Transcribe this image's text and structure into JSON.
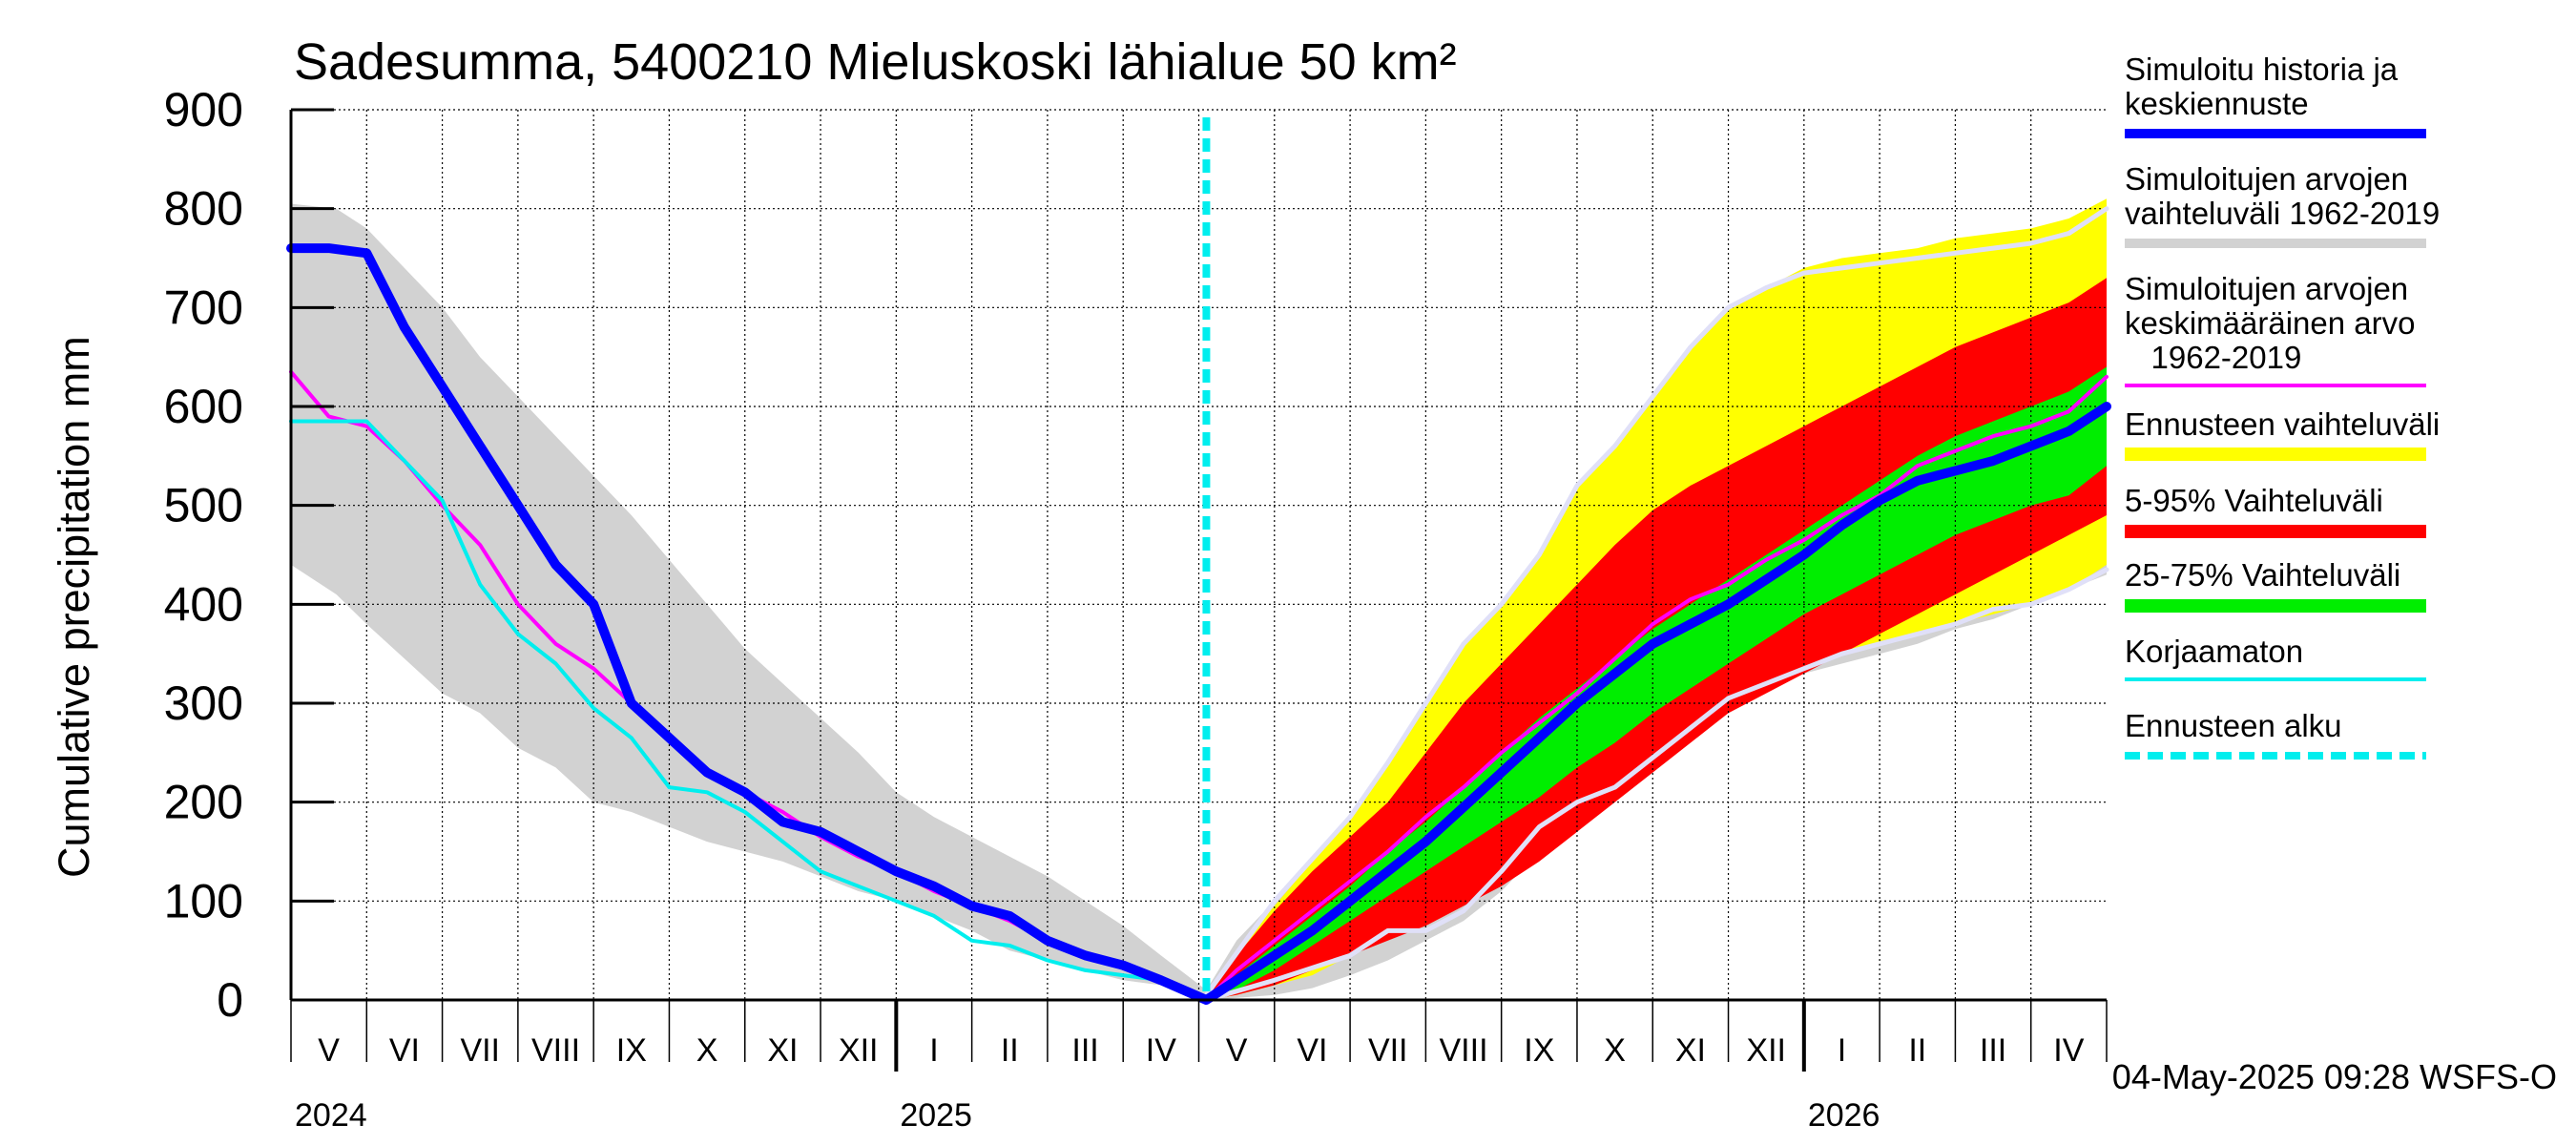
{
  "title": "Sadesumma, 5400210 Mieluskoski lähialue 50 km²",
  "footer": "04-May-2025 09:28 WSFS-O",
  "legend": [
    {
      "lines": [
        "Simuloitu historia ja",
        "keskiennuste"
      ],
      "color": "#0000ff",
      "style": "thick"
    },
    {
      "lines": [
        "Simuloitujen arvojen",
        "vaihteluväli 1962-2019"
      ],
      "color": "#d2d2d2",
      "style": "thick"
    },
    {
      "lines": [
        "Simuloitujen arvojen",
        "keskimääräinen arvo",
        "   1962-2019"
      ],
      "color": "#ff00ff",
      "style": "thin"
    },
    {
      "lines": [
        "Ennusteen vaihteluväli"
      ],
      "color": "#ffff00",
      "style": "band"
    },
    {
      "lines": [
        "5-95% Vaihteluväli"
      ],
      "color": "#ff0000",
      "style": "band"
    },
    {
      "lines": [
        "25-75% Vaihteluväli"
      ],
      "color": "#00ee00",
      "style": "band"
    },
    {
      "lines": [
        "Korjaamaton"
      ],
      "color": "#00eeee",
      "style": "thin"
    },
    {
      "lines": [
        "Ennusteen alku"
      ],
      "color": "#00eeee",
      "style": "dashed"
    }
  ],
  "chart_data": {
    "type": "area",
    "title": "Sadesumma, 5400210 Mieluskoski lähialue 50 km²",
    "ylabel": "Cumulative precipitation   mm",
    "xlabel": "",
    "ylim": [
      0,
      900
    ],
    "yticks": [
      0,
      100,
      200,
      300,
      400,
      500,
      600,
      700,
      800,
      900
    ],
    "grid": true,
    "x_unit": "months since 2024-05-01",
    "xlim": [
      0,
      24
    ],
    "forecast_start": 12.1,
    "month_labels": [
      "V",
      "VI",
      "VII",
      "VIII",
      "IX",
      "X",
      "XI",
      "XII",
      "I",
      "II",
      "III",
      "IV",
      "V",
      "VI",
      "VII",
      "VIII",
      "IX",
      "X",
      "XI",
      "XII",
      "I",
      "II",
      "III",
      "IV"
    ],
    "year_labels": [
      {
        "x": 0,
        "label": "2024"
      },
      {
        "x": 8,
        "label": "2025"
      },
      {
        "x": 20,
        "label": "2026"
      }
    ],
    "year_boundaries": [
      8,
      20
    ],
    "series": [
      {
        "name": "Simuloitujen arvojen vaihteluväli 1962-2019",
        "kind": "band",
        "color": "#d2d2d2",
        "x": [
          0,
          0.6,
          1,
          1.5,
          2,
          2.5,
          3,
          3.5,
          4,
          4.5,
          5,
          5.5,
          6,
          6.5,
          7,
          7.5,
          8,
          8.5,
          9,
          9.5,
          10,
          10.5,
          11,
          11.5,
          12.1,
          12.5,
          13,
          13.5,
          14,
          14.5,
          15,
          15.5,
          16,
          16.5,
          17,
          17.5,
          18,
          18.5,
          19,
          19.5,
          20,
          20.5,
          21,
          21.5,
          22,
          22.5,
          23,
          23.5,
          24
        ],
        "lower": [
          440,
          410,
          380,
          345,
          310,
          290,
          255,
          235,
          200,
          190,
          175,
          160,
          150,
          140,
          125,
          110,
          100,
          85,
          70,
          50,
          40,
          30,
          20,
          15,
          0,
          2,
          5,
          12,
          25,
          40,
          60,
          80,
          110,
          150,
          190,
          230,
          270,
          300,
          310,
          320,
          330,
          340,
          350,
          360,
          375,
          385,
          400,
          415,
          430
        ],
        "upper": [
          805,
          800,
          780,
          740,
          700,
          650,
          610,
          570,
          530,
          490,
          445,
          400,
          355,
          320,
          285,
          250,
          210,
          185,
          165,
          145,
          125,
          100,
          75,
          45,
          10,
          60,
          100,
          140,
          175,
          220,
          270,
          320,
          370,
          430,
          480,
          520,
          560,
          600,
          630,
          660,
          680,
          700,
          720,
          740,
          750,
          760,
          770,
          785,
          800
        ]
      },
      {
        "name": "Ennusteen vaihteluväli",
        "kind": "band",
        "color": "#ffff00",
        "x": [
          12.1,
          12.5,
          13,
          13.5,
          14,
          14.5,
          15,
          15.5,
          16,
          16.5,
          17,
          17.5,
          18,
          18.5,
          19,
          19.5,
          20,
          20.5,
          21,
          21.5,
          22,
          22.5,
          23,
          23.5,
          24
        ],
        "lower": [
          0,
          5,
          15,
          25,
          45,
          70,
          80,
          100,
          130,
          160,
          200,
          230,
          260,
          290,
          310,
          320,
          335,
          350,
          360,
          370,
          380,
          390,
          400,
          415,
          440
        ],
        "upper": [
          5,
          50,
          95,
          140,
          185,
          240,
          300,
          360,
          400,
          450,
          520,
          560,
          610,
          660,
          700,
          720,
          740,
          750,
          755,
          760,
          770,
          775,
          780,
          790,
          810
        ]
      },
      {
        "name": "5-95% Vaihteluväli",
        "kind": "band",
        "color": "#ff0000",
        "x": [
          12.1,
          12.5,
          13,
          13.5,
          14,
          14.5,
          15,
          15.5,
          16,
          16.5,
          17,
          17.5,
          18,
          18.5,
          19,
          19.5,
          20,
          20.5,
          21,
          21.5,
          22,
          22.5,
          23,
          23.5,
          24
        ],
        "lower": [
          0,
          5,
          15,
          30,
          45,
          60,
          75,
          95,
          115,
          140,
          170,
          200,
          230,
          260,
          290,
          310,
          330,
          350,
          370,
          390,
          410,
          430,
          450,
          470,
          490
        ],
        "upper": [
          5,
          45,
          90,
          130,
          165,
          200,
          250,
          300,
          340,
          380,
          420,
          460,
          495,
          520,
          540,
          560,
          580,
          600,
          620,
          640,
          660,
          675,
          690,
          705,
          730
        ]
      },
      {
        "name": "25-75% Vaihteluväli",
        "kind": "band",
        "color": "#00ee00",
        "x": [
          12.1,
          12.5,
          13,
          13.5,
          14,
          14.5,
          15,
          15.5,
          16,
          16.5,
          17,
          17.5,
          18,
          18.5,
          19,
          19.5,
          20,
          20.5,
          21,
          21.5,
          22,
          22.5,
          23,
          23.5,
          24
        ],
        "lower": [
          0,
          10,
          30,
          55,
          80,
          105,
          130,
          155,
          180,
          205,
          235,
          260,
          290,
          315,
          340,
          365,
          390,
          410,
          430,
          450,
          470,
          485,
          500,
          510,
          540
        ],
        "upper": [
          5,
          25,
          55,
          85,
          115,
          150,
          180,
          215,
          250,
          285,
          315,
          345,
          375,
          400,
          425,
          450,
          475,
          500,
          525,
          550,
          570,
          585,
          600,
          615,
          640
        ]
      },
      {
        "name": "Simuloitujen arvojen keskimääräinen arvo 1962-2019",
        "kind": "line",
        "color": "#ff00ff",
        "width": 4,
        "x": [
          0,
          0.5,
          1,
          1.5,
          2,
          2.5,
          3,
          3.5,
          4,
          4.5,
          5,
          5.5,
          6,
          6.5,
          7,
          7.5,
          8,
          8.5,
          9,
          9.5,
          10,
          10.5,
          11,
          11.5,
          12.1,
          12.5,
          13,
          13.5,
          14,
          14.5,
          15,
          15.5,
          16,
          16.5,
          17,
          17.5,
          18,
          18.5,
          19,
          19.5,
          20,
          20.5,
          21,
          21.5,
          22,
          22.5,
          23,
          23.5,
          24
        ],
        "values": [
          635,
          590,
          580,
          545,
          500,
          460,
          400,
          360,
          335,
          300,
          265,
          230,
          210,
          190,
          165,
          145,
          130,
          110,
          95,
          80,
          60,
          45,
          35,
          20,
          0,
          30,
          60,
          90,
          120,
          150,
          185,
          215,
          250,
          280,
          310,
          345,
          380,
          405,
          420,
          445,
          465,
          490,
          510,
          540,
          555,
          570,
          580,
          595,
          630
        ]
      },
      {
        "name": "Korjaamaton",
        "kind": "line",
        "color": "#00eeee",
        "width": 4,
        "x": [
          0,
          0.5,
          1,
          1.5,
          2,
          2.5,
          3,
          3.5,
          4,
          4.5,
          5,
          5.5,
          6,
          6.5,
          7,
          7.5,
          8,
          8.5,
          9,
          9.5,
          10,
          10.5,
          11,
          11.5,
          12.1
        ],
        "values": [
          585,
          585,
          585,
          545,
          505,
          420,
          370,
          340,
          295,
          265,
          215,
          210,
          190,
          160,
          130,
          115,
          100,
          85,
          60,
          55,
          40,
          30,
          25,
          20,
          0
        ]
      },
      {
        "name": "Simuloitujen arvojen vaihteluväli 1962-2019 (lower edge)",
        "kind": "line",
        "color": "#e0e0f8",
        "width": 5,
        "x": [
          12.1,
          13,
          14,
          14.5,
          15,
          15.5,
          16,
          16.5,
          17,
          17.5,
          18,
          18.5,
          19,
          19.5,
          20,
          20.5,
          21,
          21.5,
          22,
          22.5,
          23,
          23.5,
          24
        ],
        "values": [
          0,
          20,
          45,
          70,
          70,
          90,
          130,
          175,
          200,
          215,
          245,
          275,
          305,
          320,
          335,
          350,
          360,
          370,
          380,
          395,
          400,
          415,
          435
        ]
      },
      {
        "name": "Simuloitujen arvojen vaihteluväli 1962-2019 (upper edge)",
        "kind": "line",
        "color": "#e0e0f8",
        "width": 5,
        "x": [
          12.1,
          13,
          14,
          14.5,
          15,
          15.5,
          16,
          16.5,
          17,
          17.5,
          18,
          18.5,
          19,
          19.5,
          20,
          20.5,
          21,
          21.5,
          22,
          22.5,
          23,
          23.5,
          24
        ],
        "values": [
          5,
          100,
          185,
          240,
          300,
          360,
          400,
          450,
          520,
          560,
          610,
          660,
          700,
          720,
          735,
          740,
          745,
          750,
          755,
          760,
          765,
          775,
          800
        ]
      },
      {
        "name": "Simuloitu historia ja keskiennuste",
        "kind": "line",
        "color": "#0000ff",
        "width": 10,
        "x": [
          0,
          0.5,
          1,
          1.5,
          2,
          2.5,
          3,
          3.5,
          4,
          4.5,
          5,
          5.5,
          6,
          6.5,
          7,
          7.5,
          8,
          8.5,
          9,
          9.5,
          10,
          10.5,
          11,
          11.5,
          12.1,
          12.5,
          13,
          13.5,
          14,
          14.5,
          15,
          15.5,
          16,
          16.5,
          17,
          17.5,
          18,
          18.5,
          19,
          19.5,
          20,
          20.5,
          21,
          21.5,
          22,
          22.5,
          23,
          23.5,
          24
        ],
        "values": [
          760,
          760,
          755,
          680,
          620,
          560,
          500,
          440,
          400,
          300,
          265,
          230,
          210,
          180,
          170,
          150,
          130,
          115,
          95,
          85,
          60,
          45,
          35,
          20,
          0,
          20,
          45,
          70,
          100,
          130,
          160,
          195,
          230,
          265,
          300,
          330,
          360,
          380,
          400,
          425,
          450,
          480,
          505,
          525,
          535,
          545,
          560,
          575,
          600
        ]
      }
    ],
    "forecast_start_line": {
      "name": "Ennusteen alku",
      "color": "#00eeee",
      "style": "dashed"
    }
  }
}
